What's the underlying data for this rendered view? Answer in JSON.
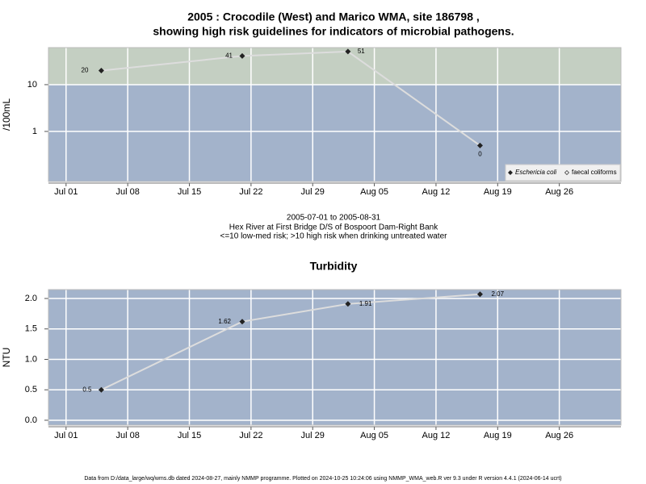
{
  "chart_data": [
    {
      "type": "line",
      "title": [
        "2005 : Crocodile (West) and Marico WMA, site 186798 ,",
        "showing high risk guidelines for indicators of microbial pathogens."
      ],
      "ylabel": "/100mL",
      "log_y": true,
      "threshold": 10,
      "band_colors": {
        "below": "#a3b3cb",
        "above": "#c4cfc2"
      },
      "x": [
        "2005-07-05",
        "2005-07-21",
        "2005-08-02",
        "2005-08-17"
      ],
      "series": [
        {
          "name": "Eschericia coli",
          "color": "#222222",
          "line_color": "#dddddd",
          "values": [
            20,
            41,
            51,
            0.5
          ],
          "value_labels": [
            "20",
            "41",
            "51",
            "0"
          ]
        }
      ],
      "legend_entries": [
        "Eschericia coli",
        "faecal coliforms"
      ],
      "legend": "bottom-right",
      "xlim": [
        "2005-06-29",
        "2005-09-02"
      ],
      "xticks": [
        {
          "value": "2005-07-01",
          "label": "Jul 01"
        },
        {
          "value": "2005-07-08",
          "label": "Jul 08"
        },
        {
          "value": "2005-07-15",
          "label": "Jul 15"
        },
        {
          "value": "2005-07-22",
          "label": "Jul 22"
        },
        {
          "value": "2005-07-29",
          "label": "Jul 29"
        },
        {
          "value": "2005-08-05",
          "label": "Aug 05"
        },
        {
          "value": "2005-08-12",
          "label": "Aug 12"
        },
        {
          "value": "2005-08-19",
          "label": "Aug 19"
        },
        {
          "value": "2005-08-26",
          "label": "Aug 26"
        }
      ],
      "ylim": [
        0.085,
        62
      ],
      "yticks": [
        1,
        10
      ],
      "grid": true,
      "notes": [
        "2005-07-01 to 2005-08-31",
        "Hex River at First Bridge D/S of Bospoort Dam-Right Bank",
        "<=10 low-med risk; >10 high risk when drinking untreated water"
      ]
    },
    {
      "type": "line",
      "title": [
        "Turbidity"
      ],
      "ylabel": "NTU",
      "log_y": false,
      "band_colors": {
        "below": "#a3b3cb"
      },
      "x": [
        "2005-07-05",
        "2005-07-21",
        "2005-08-02",
        "2005-08-17"
      ],
      "series": [
        {
          "name": "Turbidity",
          "color": "#222222",
          "line_color": "#dddddd",
          "values": [
            0.5,
            1.62,
            1.91,
            2.07
          ]
        }
      ],
      "xlim": [
        "2005-06-29",
        "2005-09-02"
      ],
      "xticks": [
        {
          "value": "2005-07-01",
          "label": "Jul 01"
        },
        {
          "value": "2005-07-08",
          "label": "Jul 08"
        },
        {
          "value": "2005-07-15",
          "label": "Jul 15"
        },
        {
          "value": "2005-07-22",
          "label": "Jul 22"
        },
        {
          "value": "2005-07-29",
          "label": "Jul 29"
        },
        {
          "value": "2005-08-05",
          "label": "Aug 05"
        },
        {
          "value": "2005-08-12",
          "label": "Aug 12"
        },
        {
          "value": "2005-08-19",
          "label": "Aug 19"
        },
        {
          "value": "2005-08-26",
          "label": "Aug 26"
        }
      ],
      "ylim": [
        -0.08,
        2.146
      ],
      "yticks": [
        {
          "value": 0,
          "label": "0.0"
        },
        0.5,
        {
          "value": 1,
          "label": "1.0"
        },
        1.5,
        {
          "value": 2,
          "label": "2.0"
        }
      ],
      "grid": true
    }
  ],
  "footer": "Data from D:/data_large/wq/wms.db dated 2024-08-27, mainly NMMP programme. Plotted on 2024-10-25 10:24:06 using NMMP_WMA_web.R ver 9.3 under R version 4.4.1 (2024-06-14 ucrt)"
}
